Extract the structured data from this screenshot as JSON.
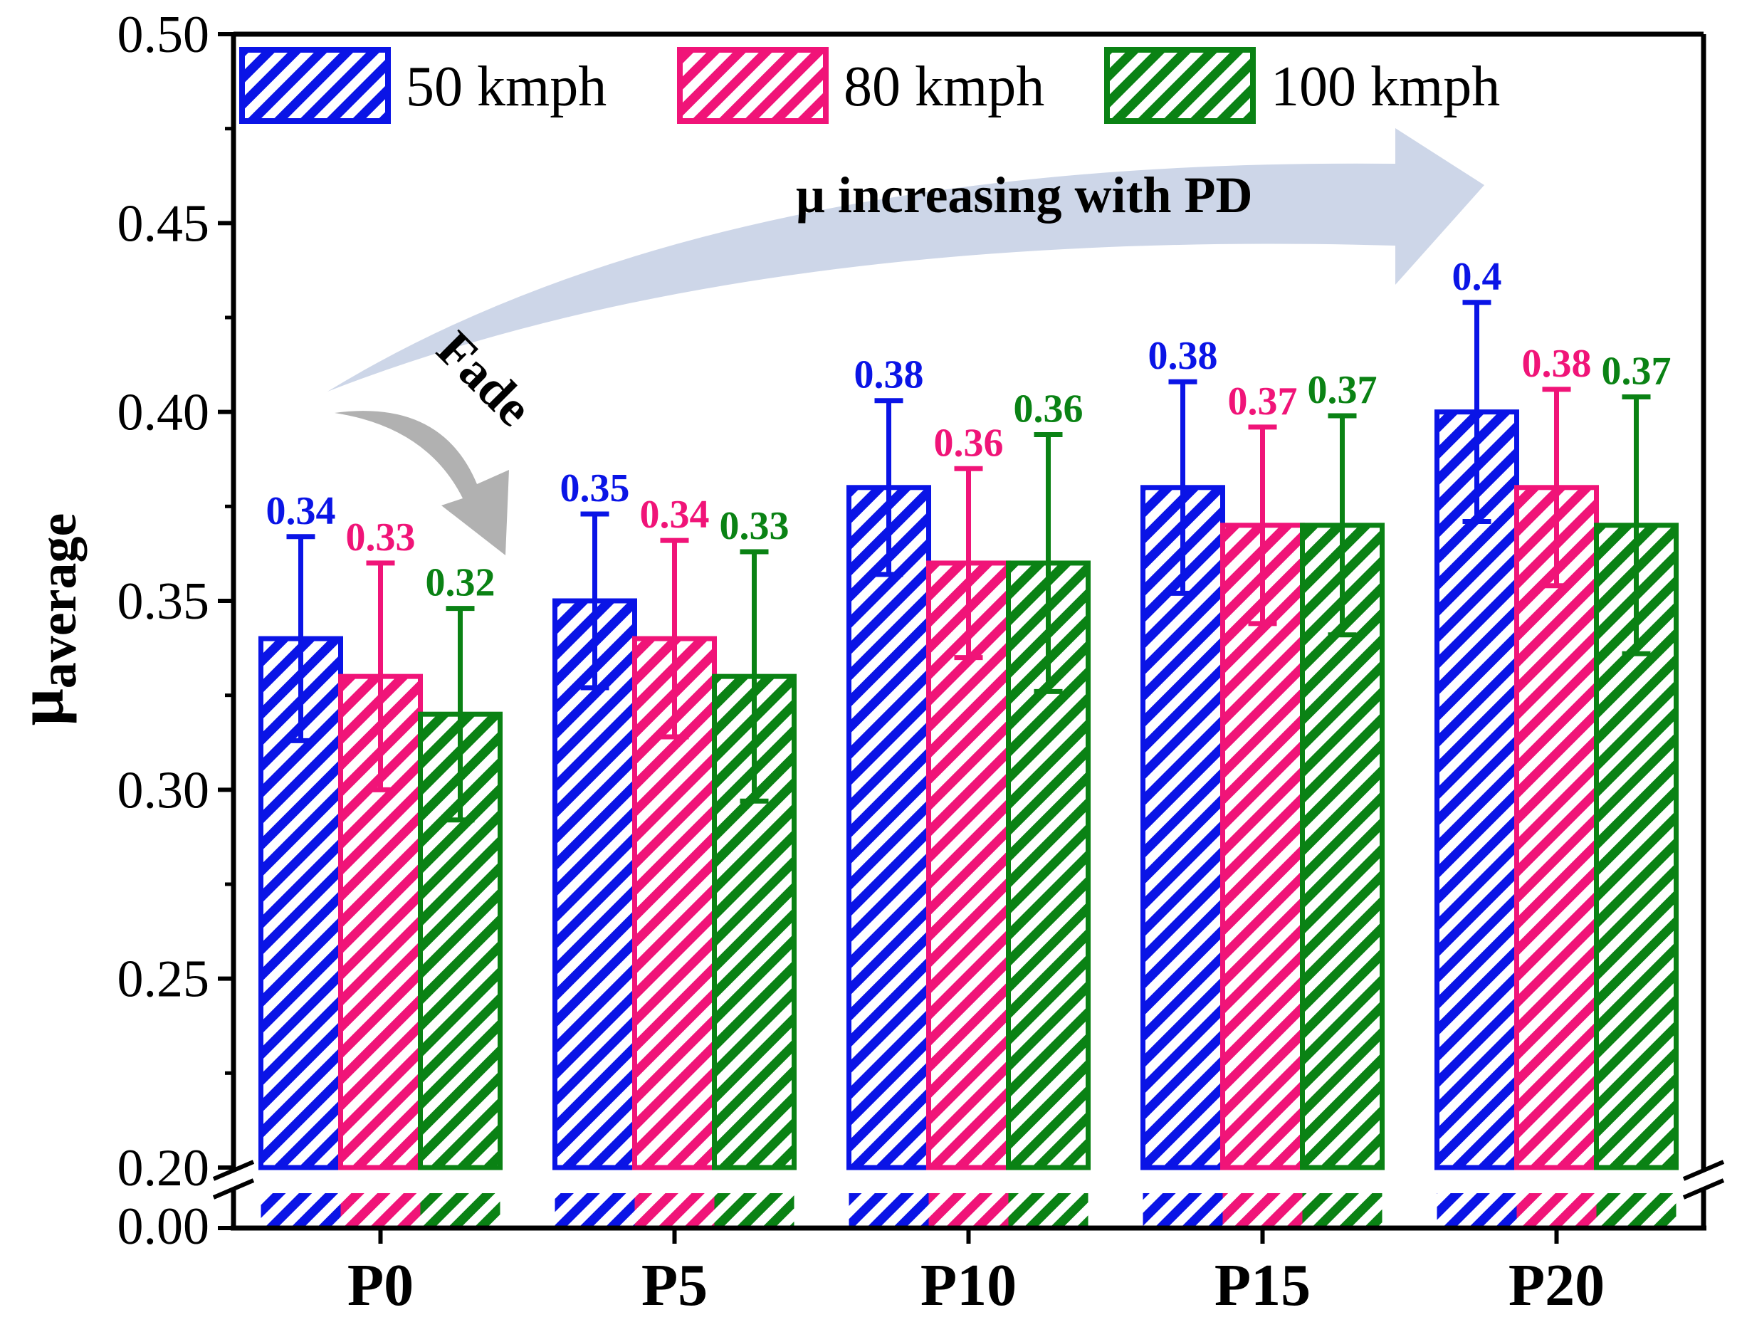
{
  "chart_data": {
    "type": "bar",
    "title": "",
    "xlabel": "",
    "ylabel": "μaverage",
    "ylabel_base": "μ",
    "ylabel_sub": "average",
    "categories": [
      "P0",
      "P5",
      "P10",
      "P15",
      "P20"
    ],
    "series": [
      {
        "name": "50 kmph",
        "color": "#0a14e6",
        "values": [
          0.34,
          0.35,
          0.38,
          0.38,
          0.4
        ],
        "labels": [
          "0.34",
          "0.35",
          "0.38",
          "0.38",
          "0.4"
        ],
        "errors": [
          0.027,
          0.023,
          0.023,
          0.028,
          0.029
        ]
      },
      {
        "name": "80 kmph",
        "color": "#f01478",
        "values": [
          0.33,
          0.34,
          0.36,
          0.37,
          0.38
        ],
        "labels": [
          "0.33",
          "0.34",
          "0.36",
          "0.37",
          "0.38"
        ],
        "errors": [
          0.03,
          0.026,
          0.025,
          0.026,
          0.026
        ]
      },
      {
        "name": "100 kmph",
        "color": "#0a8214",
        "values": [
          0.32,
          0.33,
          0.36,
          0.37,
          0.37
        ],
        "labels": [
          "0.32",
          "0.33",
          "0.36",
          "0.37",
          "0.37"
        ],
        "errors": [
          0.028,
          0.033,
          0.034,
          0.029,
          0.034
        ]
      }
    ],
    "ylim_upper": [
      0.2,
      0.5
    ],
    "ylim_lower": [
      0.0,
      0.0
    ],
    "yticks_upper": [
      "0.20",
      "0.25",
      "0.30",
      "0.35",
      "0.40",
      "0.45",
      "0.50"
    ],
    "yticks_lower": [
      "0.00"
    ],
    "axis_break": true,
    "bar_pattern": "diagonal-hatch",
    "legend_position": "top-left",
    "grid": false,
    "annotations": [
      {
        "id": "trend",
        "text": "μ increasing with PD",
        "type": "curved-arrow",
        "color": "#c8d2e6"
      },
      {
        "id": "fade",
        "text": "Fade",
        "type": "curved-arrow",
        "color": "#a8a8a8"
      }
    ]
  }
}
